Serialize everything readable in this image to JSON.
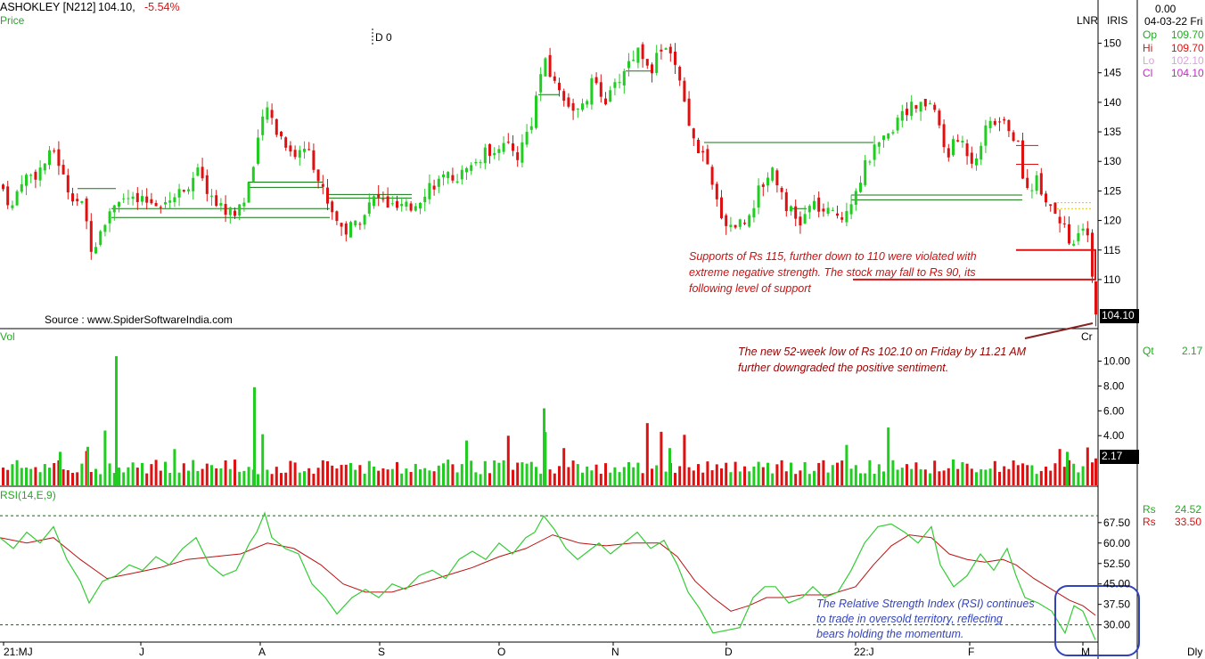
{
  "header": {
    "symbol": "ASHOKLEY [N212]",
    "last": "104.10,",
    "change": "-5.54%",
    "price_label": "Price",
    "marker": "D 0",
    "lnr": "LNR",
    "iris": "IRIS"
  },
  "info": {
    "zero": "0.00",
    "date": "04-03-22 Fri",
    "op_label": "Op",
    "op": "109.70",
    "hi_label": "Hi",
    "hi": "109.70",
    "lo_label": "Lo",
    "lo": "102.10",
    "cl_label": "Cl",
    "cl": "104.10",
    "qt_label": "Qt",
    "qt": "2.17",
    "rs1_label": "Rs",
    "rs1": "24.52",
    "rs2_label": "Rs",
    "rs2": "33.50"
  },
  "source": "Source : www.SpiderSoftwareIndia.com",
  "price_tag": "104.10",
  "cr": "Cr",
  "vol_label": "Vol",
  "vol_tag": "2.17",
  "rsi_label": "RSI(14,E,9)",
  "dly": "Dly",
  "annotations": {
    "support": [
      "Supports of Rs 115, further down to 110 were violated with",
      "extreme negative strength. The stock may fall to Rs 90, its",
      "following level of support"
    ],
    "low": [
      "The new 52-week low of Rs 102.10 on Friday by 11.21 AM",
      "further downgraded the positive sentiment."
    ],
    "rsi": [
      "The Relative Strength Index (RSI) continues",
      "to trade in oversold territory, reflecting",
      "bears holding the momentum."
    ]
  },
  "colors": {
    "up": "#22cc22",
    "down": "#dd1111",
    "rsi": "#33cc33",
    "signal": "#bb1111",
    "note": "#cc1111",
    "note2": "#aa0000",
    "rsi_note": "#3344bb"
  },
  "chart_data": [
    {
      "type": "candlestick",
      "ylim": [
        102,
        154
      ],
      "y_ticks": [
        110,
        115,
        120,
        125,
        130,
        135,
        140,
        145,
        150
      ],
      "x_ticks": [
        "21:MJ",
        "J",
        "A",
        "S",
        "O",
        "N",
        "D",
        "22:J",
        "F",
        "M"
      ],
      "anchors": [
        {
          "x": 0,
          "c": 126
        },
        {
          "x": 12,
          "c": 122
        },
        {
          "x": 22,
          "c": 127
        },
        {
          "x": 40,
          "c": 128
        },
        {
          "x": 60,
          "c": 132
        },
        {
          "x": 72,
          "c": 126
        },
        {
          "x": 92,
          "c": 122
        },
        {
          "x": 102,
          "c": 115
        },
        {
          "x": 112,
          "c": 119
        },
        {
          "x": 130,
          "c": 124
        },
        {
          "x": 150,
          "c": 123
        },
        {
          "x": 170,
          "c": 123
        },
        {
          "x": 195,
          "c": 124
        },
        {
          "x": 220,
          "c": 128
        },
        {
          "x": 240,
          "c": 123
        },
        {
          "x": 260,
          "c": 121
        },
        {
          "x": 275,
          "c": 124
        },
        {
          "x": 285,
          "c": 132
        },
        {
          "x": 298,
          "c": 139
        },
        {
          "x": 310,
          "c": 135
        },
        {
          "x": 330,
          "c": 131
        },
        {
          "x": 345,
          "c": 133
        },
        {
          "x": 355,
          "c": 127
        },
        {
          "x": 370,
          "c": 122
        },
        {
          "x": 385,
          "c": 118
        },
        {
          "x": 400,
          "c": 120
        },
        {
          "x": 420,
          "c": 124
        },
        {
          "x": 440,
          "c": 122
        },
        {
          "x": 460,
          "c": 122
        },
        {
          "x": 480,
          "c": 126
        },
        {
          "x": 500,
          "c": 127
        },
        {
          "x": 520,
          "c": 128
        },
        {
          "x": 540,
          "c": 131
        },
        {
          "x": 560,
          "c": 133
        },
        {
          "x": 580,
          "c": 131
        },
        {
          "x": 595,
          "c": 137
        },
        {
          "x": 608,
          "c": 147
        },
        {
          "x": 622,
          "c": 143
        },
        {
          "x": 635,
          "c": 140
        },
        {
          "x": 650,
          "c": 138
        },
        {
          "x": 665,
          "c": 144
        },
        {
          "x": 680,
          "c": 140
        },
        {
          "x": 700,
          "c": 146
        },
        {
          "x": 715,
          "c": 149
        },
        {
          "x": 730,
          "c": 146
        },
        {
          "x": 745,
          "c": 150
        },
        {
          "x": 760,
          "c": 144
        },
        {
          "x": 772,
          "c": 135
        },
        {
          "x": 790,
          "c": 130
        },
        {
          "x": 800,
          "c": 124
        },
        {
          "x": 815,
          "c": 119
        },
        {
          "x": 835,
          "c": 120
        },
        {
          "x": 850,
          "c": 125
        },
        {
          "x": 865,
          "c": 129
        },
        {
          "x": 880,
          "c": 123
        },
        {
          "x": 895,
          "c": 119
        },
        {
          "x": 910,
          "c": 123
        },
        {
          "x": 925,
          "c": 121
        },
        {
          "x": 945,
          "c": 121
        },
        {
          "x": 960,
          "c": 126
        },
        {
          "x": 975,
          "c": 131
        },
        {
          "x": 995,
          "c": 134
        },
        {
          "x": 1010,
          "c": 139
        },
        {
          "x": 1025,
          "c": 139
        },
        {
          "x": 1045,
          "c": 140
        },
        {
          "x": 1060,
          "c": 131
        },
        {
          "x": 1075,
          "c": 134
        },
        {
          "x": 1090,
          "c": 130
        },
        {
          "x": 1110,
          "c": 137
        },
        {
          "x": 1130,
          "c": 136
        },
        {
          "x": 1140,
          "c": 133
        },
        {
          "x": 1150,
          "c": 125
        },
        {
          "x": 1162,
          "c": 127
        },
        {
          "x": 1175,
          "c": 123
        },
        {
          "x": 1190,
          "c": 120
        },
        {
          "x": 1198,
          "c": 115
        },
        {
          "x": 1210,
          "c": 118
        },
        {
          "x": 1220,
          "c": 117
        },
        {
          "x": 1229,
          "c": 104.1
        }
      ],
      "last_candle": {
        "open": 109.7,
        "high": 109.7,
        "low": 102.1,
        "close": 104.1
      },
      "support_levels": [
        {
          "y": 125.4,
          "x0": 87,
          "x1": 130
        },
        {
          "y": 122.0,
          "x0": 125,
          "x1": 370
        },
        {
          "y": 120.5,
          "x0": 125,
          "x1": 370
        },
        {
          "y": 126.5,
          "x0": 278,
          "x1": 362
        },
        {
          "y": 125.6,
          "x0": 278,
          "x1": 362
        },
        {
          "y": 124.4,
          "x0": 368,
          "x1": 462
        },
        {
          "y": 123.8,
          "x0": 368,
          "x1": 462
        },
        {
          "y": 141.3,
          "x0": 604,
          "x1": 628
        },
        {
          "y": 145.3,
          "x0": 702,
          "x1": 732
        },
        {
          "y": 133.2,
          "x0": 790,
          "x1": 980
        },
        {
          "y": 122.0,
          "x0": 888,
          "x1": 905
        },
        {
          "y": 124.3,
          "x0": 955,
          "x1": 1147
        },
        {
          "y": 123.5,
          "x0": 955,
          "x1": 1147
        },
        {
          "y": 132.7,
          "x0": 1140,
          "x1": 1165
        },
        {
          "y": 129.5,
          "x0": 1140,
          "x1": 1165
        },
        {
          "y": 115.0,
          "x0": 1140,
          "x1": 1230
        },
        {
          "y": 110.0,
          "x0": 957,
          "x1": 1230
        }
      ]
    },
    {
      "type": "bar",
      "name": "Vol",
      "ylim": [
        0,
        11.4
      ],
      "y_ticks": [
        4.0,
        6.0,
        8.0,
        10.0
      ],
      "last_value": 2.17
    },
    {
      "type": "line",
      "name": "RSI(14,E,9)",
      "ylim": [
        24,
        73
      ],
      "y_ticks": [
        30.0,
        37.5,
        45.0,
        52.5,
        60.0,
        67.5
      ],
      "bands": [
        70,
        30
      ],
      "rsi_points": [
        [
          0,
          62
        ],
        [
          15,
          58
        ],
        [
          30,
          64
        ],
        [
          45,
          60
        ],
        [
          60,
          66
        ],
        [
          75,
          54
        ],
        [
          90,
          46
        ],
        [
          100,
          38
        ],
        [
          115,
          46
        ],
        [
          130,
          48
        ],
        [
          145,
          52
        ],
        [
          160,
          50
        ],
        [
          175,
          55
        ],
        [
          190,
          52
        ],
        [
          205,
          58
        ],
        [
          220,
          62
        ],
        [
          235,
          52
        ],
        [
          250,
          48
        ],
        [
          265,
          50
        ],
        [
          280,
          60
        ],
        [
          288,
          64
        ],
        [
          297,
          71
        ],
        [
          305,
          62
        ],
        [
          320,
          58
        ],
        [
          335,
          56
        ],
        [
          350,
          45
        ],
        [
          365,
          40
        ],
        [
          378,
          34
        ],
        [
          395,
          40
        ],
        [
          410,
          43
        ],
        [
          425,
          40
        ],
        [
          440,
          45
        ],
        [
          455,
          43
        ],
        [
          470,
          48
        ],
        [
          485,
          50
        ],
        [
          500,
          47
        ],
        [
          515,
          54
        ],
        [
          530,
          57
        ],
        [
          545,
          54
        ],
        [
          560,
          60
        ],
        [
          575,
          56
        ],
        [
          590,
          62
        ],
        [
          600,
          64
        ],
        [
          610,
          70
        ],
        [
          622,
          65
        ],
        [
          635,
          58
        ],
        [
          648,
          54
        ],
        [
          660,
          57
        ],
        [
          672,
          60
        ],
        [
          685,
          56
        ],
        [
          700,
          60
        ],
        [
          715,
          64
        ],
        [
          730,
          58
        ],
        [
          745,
          61
        ],
        [
          760,
          52
        ],
        [
          772,
          42
        ],
        [
          785,
          36
        ],
        [
          800,
          27
        ],
        [
          815,
          28
        ],
        [
          830,
          29
        ],
        [
          845,
          40
        ],
        [
          858,
          44
        ],
        [
          870,
          44
        ],
        [
          885,
          38
        ],
        [
          900,
          40
        ],
        [
          912,
          44
        ],
        [
          925,
          40
        ],
        [
          940,
          42
        ],
        [
          955,
          50
        ],
        [
          970,
          60
        ],
        [
          985,
          66
        ],
        [
          1000,
          67
        ],
        [
          1015,
          64
        ],
        [
          1030,
          60
        ],
        [
          1045,
          66
        ],
        [
          1055,
          52
        ],
        [
          1070,
          44
        ],
        [
          1085,
          48
        ],
        [
          1100,
          56
        ],
        [
          1115,
          50
        ],
        [
          1130,
          58
        ],
        [
          1140,
          48
        ],
        [
          1150,
          40
        ],
        [
          1165,
          38
        ],
        [
          1180,
          35
        ],
        [
          1195,
          27
        ],
        [
          1205,
          37
        ],
        [
          1215,
          35
        ],
        [
          1229,
          24.5
        ]
      ],
      "signal_points": [
        [
          0,
          62
        ],
        [
          30,
          60
        ],
        [
          60,
          62
        ],
        [
          90,
          54
        ],
        [
          120,
          47
        ],
        [
          150,
          49
        ],
        [
          180,
          51
        ],
        [
          210,
          54
        ],
        [
          240,
          55
        ],
        [
          270,
          56
        ],
        [
          300,
          60
        ],
        [
          330,
          58
        ],
        [
          360,
          52
        ],
        [
          385,
          45
        ],
        [
          410,
          42
        ],
        [
          440,
          42
        ],
        [
          470,
          45
        ],
        [
          500,
          48
        ],
        [
          530,
          51
        ],
        [
          560,
          55
        ],
        [
          590,
          58
        ],
        [
          620,
          63
        ],
        [
          650,
          60
        ],
        [
          680,
          59
        ],
        [
          710,
          60
        ],
        [
          740,
          60
        ],
        [
          760,
          55
        ],
        [
          780,
          46
        ],
        [
          800,
          40
        ],
        [
          820,
          35
        ],
        [
          840,
          37
        ],
        [
          860,
          40
        ],
        [
          880,
          40
        ],
        [
          900,
          41
        ],
        [
          930,
          41
        ],
        [
          960,
          44
        ],
        [
          980,
          52
        ],
        [
          1000,
          59
        ],
        [
          1020,
          63
        ],
        [
          1045,
          62
        ],
        [
          1065,
          56
        ],
        [
          1085,
          54
        ],
        [
          1105,
          53
        ],
        [
          1125,
          54
        ],
        [
          1140,
          52
        ],
        [
          1160,
          47
        ],
        [
          1180,
          43
        ],
        [
          1200,
          39
        ],
        [
          1215,
          37
        ],
        [
          1229,
          33.5
        ]
      ]
    }
  ]
}
